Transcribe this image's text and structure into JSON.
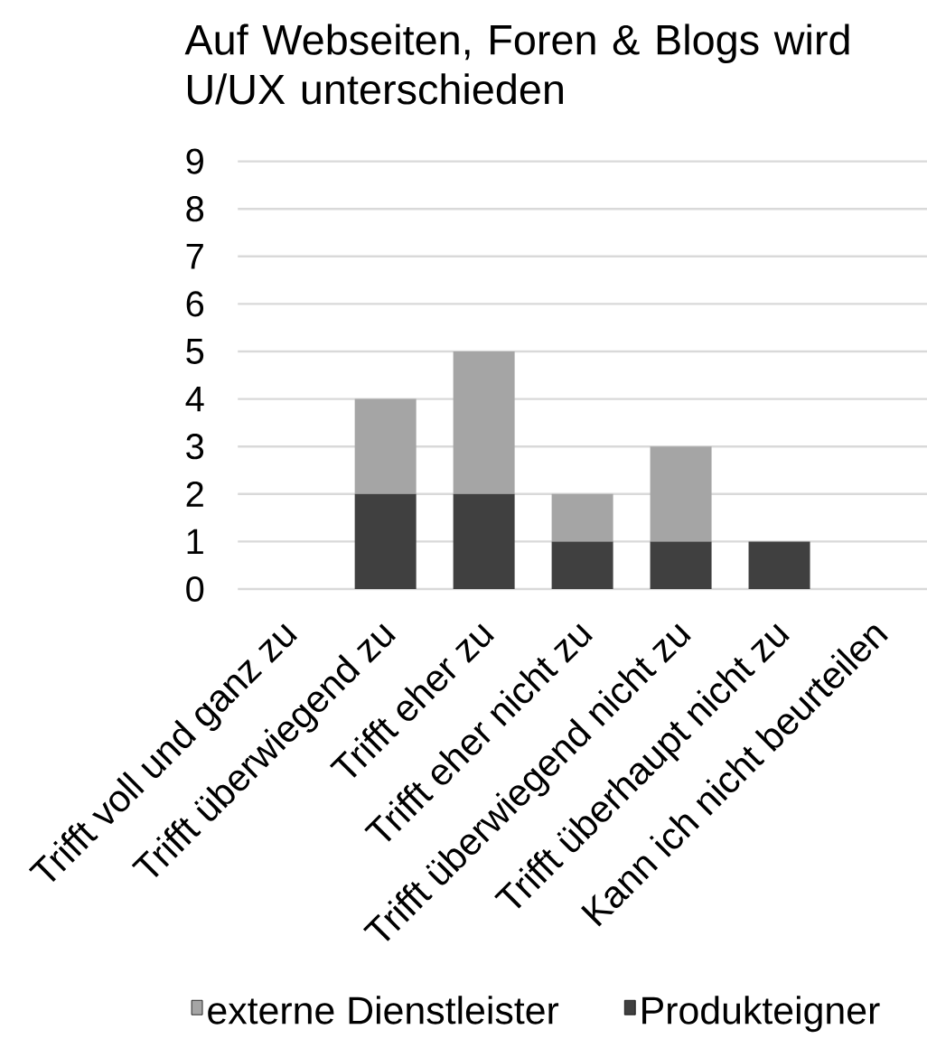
{
  "chart_data": {
    "type": "bar",
    "title": "Auf Webseiten, Foren & Blogs wird U/UX unterschieden",
    "categories": [
      "Trifft voll und ganz zu",
      "Trifft überwiegend zu",
      "Trifft eher zu",
      "Trifft eher nicht zu",
      "Trifft überwiegend nicht zu",
      "Trifft überhaupt nicht zu",
      "Kann ich nicht beurteilen"
    ],
    "series": [
      {
        "name": "Produkteigner",
        "color": "#404040",
        "values": [
          0,
          2,
          2,
          1,
          1,
          1,
          0
        ]
      },
      {
        "name": "externe Dienstleister",
        "color": "#a5a5a5",
        "values": [
          0,
          2,
          3,
          1,
          2,
          0,
          0
        ]
      }
    ],
    "stacked": true,
    "ylim": [
      0,
      9
    ],
    "yticks": [
      0,
      1,
      2,
      3,
      4,
      5,
      6,
      7,
      8,
      9
    ],
    "grid": "y",
    "legend": "bottom"
  }
}
